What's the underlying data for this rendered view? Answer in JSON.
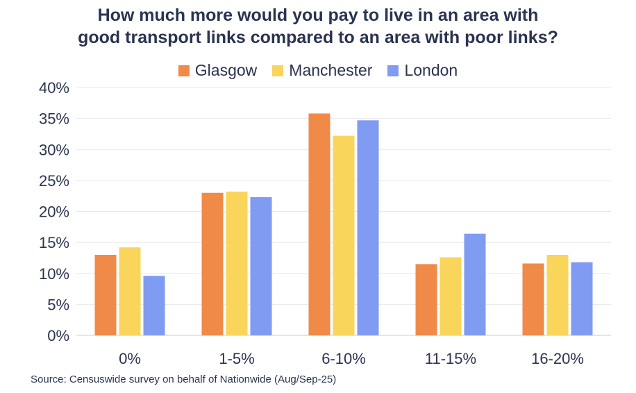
{
  "chart_data": {
    "type": "bar",
    "title_lines": [
      "How much more would you pay to live in an area with",
      "good transport links compared to an area with poor links?"
    ],
    "categories": [
      "0%",
      "1-5%",
      "6-10%",
      "11-15%",
      "16-20%"
    ],
    "series": [
      {
        "name": "Glasgow",
        "color": "#f08a48",
        "values": [
          13.0,
          23.0,
          35.8,
          11.5,
          11.6
        ]
      },
      {
        "name": "Manchester",
        "color": "#fad55c",
        "values": [
          14.2,
          23.2,
          32.2,
          12.6,
          13.0
        ]
      },
      {
        "name": "London",
        "color": "#7f9bf2",
        "values": [
          9.6,
          22.3,
          34.7,
          16.4,
          11.8
        ]
      }
    ],
    "y_ticks": [
      "0%",
      "5%",
      "10%",
      "15%",
      "20%",
      "25%",
      "30%",
      "35%",
      "40%"
    ],
    "ylim": [
      0,
      40
    ],
    "grid": true,
    "legend_position": "top-center",
    "source": "Source: Censuswide survey on behalf of Nationwide (Aug/Sep-25)"
  }
}
